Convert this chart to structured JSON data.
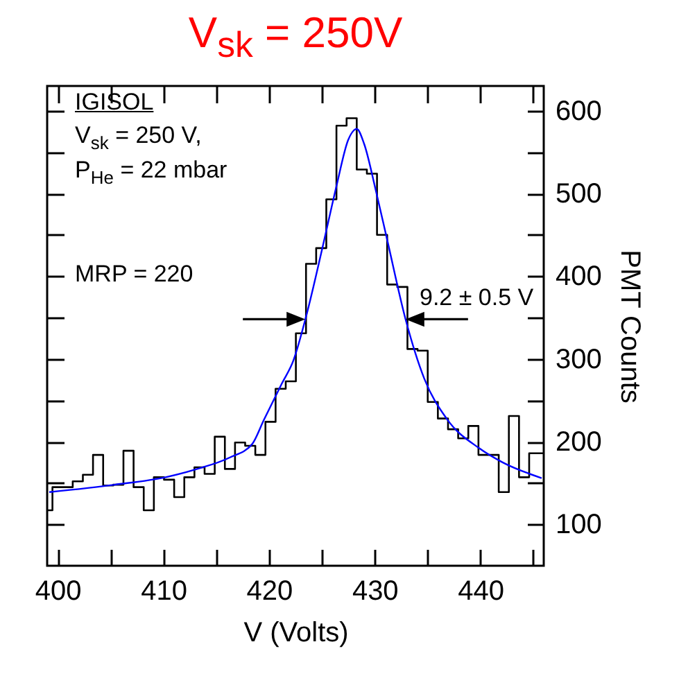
{
  "chart_data": {
    "type": "histogram",
    "title": "V$_{sk}$ = 250V",
    "xlabel": "V (Volts)",
    "ylabel": "PMT Counts",
    "xlim": [
      399,
      446
    ],
    "ylim": [
      50,
      630
    ],
    "xticks": [
      400,
      {
        "value": 405,
        "label": null
      },
      410,
      {
        "value": 415,
        "label": null
      },
      420,
      {
        "value": 425,
        "label": null
      },
      430,
      {
        "value": 435,
        "label": null
      },
      440,
      {
        "value": 445,
        "label": null
      }
    ],
    "yticks": [
      100,
      {
        "value": 150,
        "label": null
      },
      200,
      {
        "value": 250,
        "label": null
      },
      300,
      {
        "value": 350,
        "label": null
      },
      400,
      {
        "value": 450,
        "label": null
      },
      500,
      {
        "value": 550,
        "label": null
      },
      600
    ],
    "grid": false,
    "bins": [
      399,
      399.5,
      400.46,
      401.42,
      402.38,
      403.34,
      404.3,
      405.26,
      406.22,
      407.18,
      408.14,
      409.1,
      410.06,
      411.02,
      411.98,
      412.94,
      413.9,
      414.86,
      415.82,
      416.78,
      417.74,
      418.7,
      419.66,
      420.62,
      421.58,
      422.54,
      423.5,
      424.46,
      425.42,
      426.38,
      427.34,
      428.3,
      429.26,
      430.22,
      431.18,
      432.14,
      433.1,
      434.06,
      435.02,
      435.98,
      436.94,
      437.9,
      438.86,
      439.82,
      440.78,
      441.74,
      442.7,
      443.66,
      444.62,
      446
    ],
    "series": [
      {
        "color": "#000000",
        "values": [
          117,
          145,
          145,
          152,
          160,
          184,
          147,
          148,
          189,
          145,
          117,
          157,
          154,
          133,
          157,
          169,
          161,
          206,
          167,
          199,
          195,
          184,
          224,
          264,
          273,
          331,
          415,
          434,
          493,
          582,
          591,
          529,
          524,
          450,
          390,
          387,
          312,
          310,
          248,
          228,
          215,
          204,
          219,
          184,
          184,
          139,
          231,
          157,
          186
        ]
      },
      {
        "type": "line",
        "color": "#0000ff",
        "x": [
          399.2,
          405.4,
          410.2,
          413.2,
          416.3,
          418.4,
          419.5,
          421.2,
          422.3,
          423.5,
          425.1,
          426.4,
          427.5,
          428.3,
          429.0,
          430.1,
          431.2,
          432.9,
          434.7,
          436.8,
          439.9,
          442.1,
          445.8
        ],
        "values": [
          139,
          148,
          157,
          167,
          181,
          197,
          226,
          270,
          298,
          351,
          437,
          510,
          565,
          578,
          560,
          504,
          443,
          349,
          276,
          228,
          192,
          175,
          156
        ]
      }
    ],
    "annotations": [
      "IGISOL",
      "V$_{sk}$ = 250 V,",
      "P$_{He}$ = 22 mbar",
      "MRP = 220",
      {
        "text": "9.2 ± 0.5 V",
        "x": 433.2,
        "y": 348
      }
    ]
  }
}
